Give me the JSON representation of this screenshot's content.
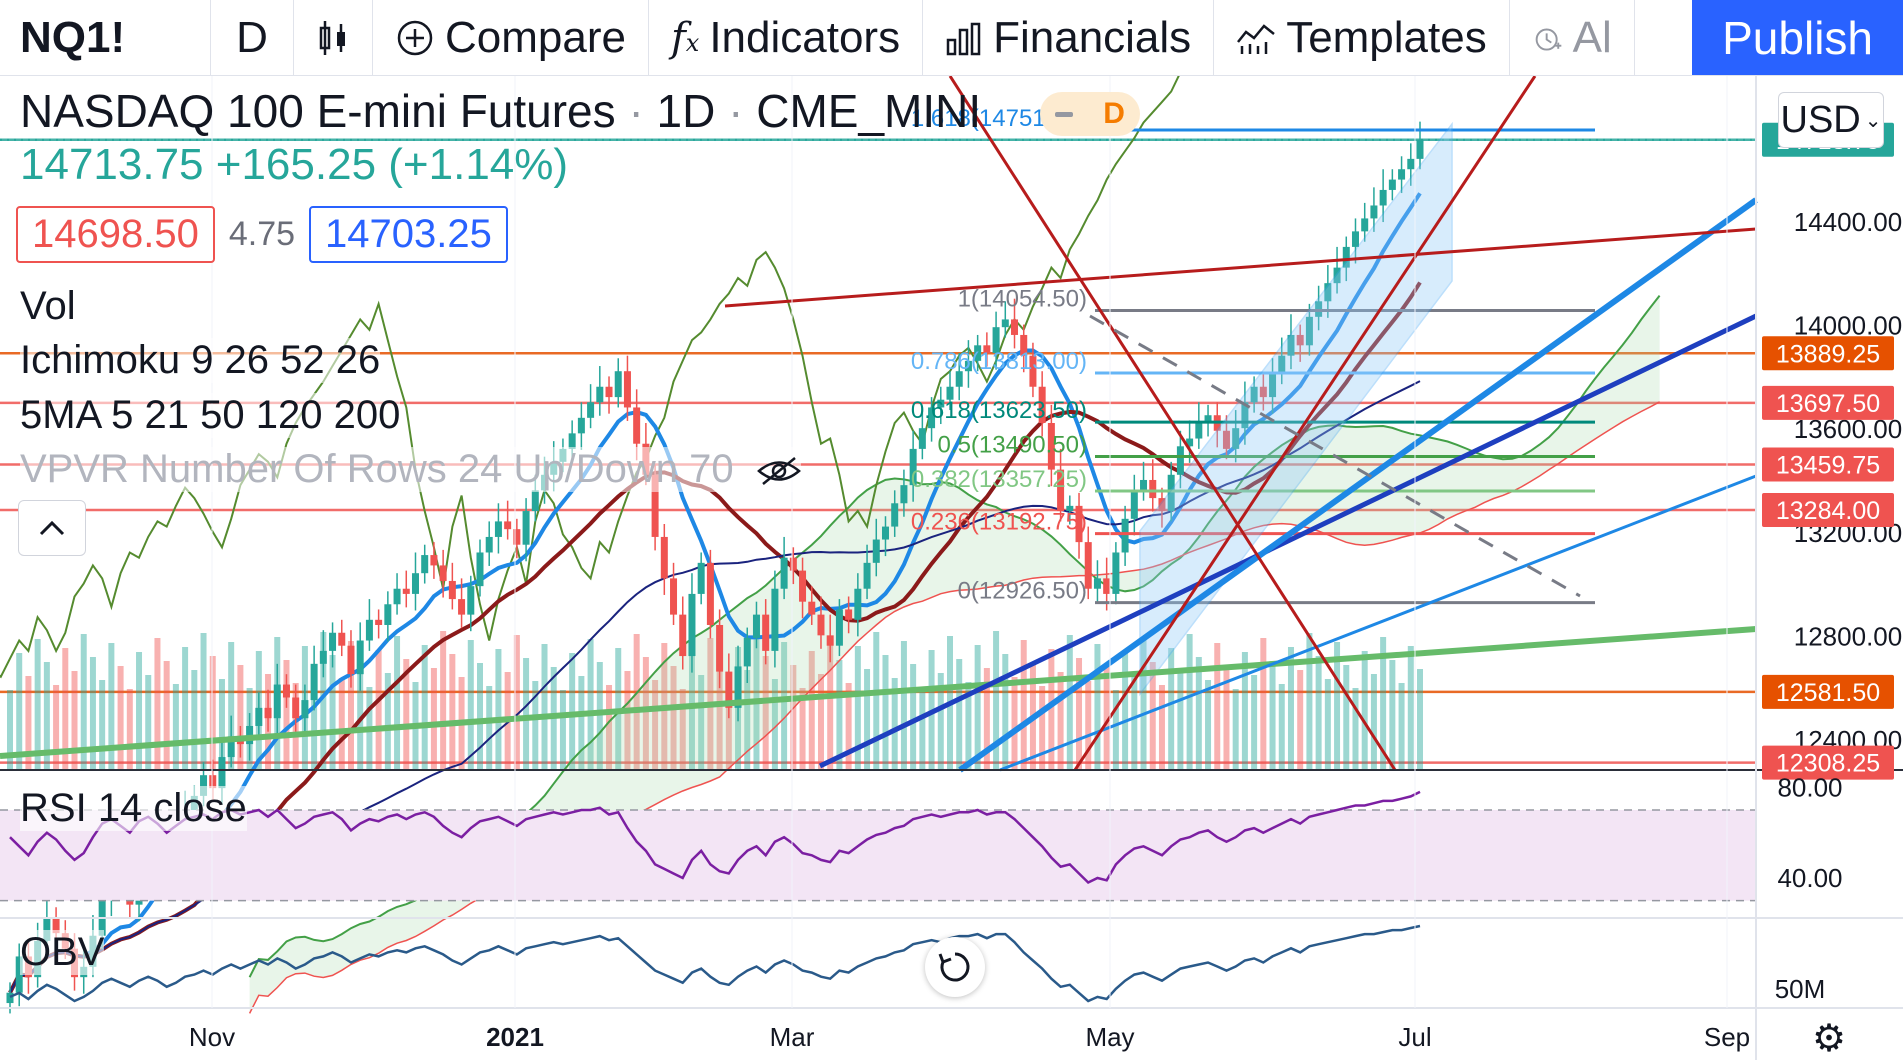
{
  "toolbar": {
    "symbol": "NQ1!",
    "interval": "D",
    "compare_label": "Compare",
    "indicators_label": "Indicators",
    "financials_label": "Financials",
    "templates_label": "Templates",
    "alert_label": "Al",
    "publish_label": "Publish",
    "icons": [
      "bar-style-icon",
      "plus-circle-icon",
      "fx-icon",
      "bar-chart-icon",
      "templates-chart-icon",
      "alarm-icon"
    ]
  },
  "legend": {
    "title": "NASDAQ 100 E-mini Futures",
    "interval": "1D",
    "exchange": "CME_MINI",
    "delay_badge": "D",
    "last_price": "14713.75",
    "change": "+165.25",
    "change_pct": "(+1.14%)",
    "bid": "14698.50",
    "spread": "4.75",
    "ask": "14703.25"
  },
  "indicators": [
    {
      "name": "Vol",
      "params": ""
    },
    {
      "name": "Ichimoku",
      "params": "9 26 52 26"
    },
    {
      "name": "5MA",
      "params": "5 21 50 120 200"
    },
    {
      "name": "VPVR Number Of Rows 24 Up/Down 70",
      "params": ""
    }
  ],
  "currency": "USD",
  "rsi_label": "RSI",
  "rsi_params": "14 close",
  "obv_label": "OBV",
  "colors": {
    "up": "#26a69a",
    "down": "#ef5350",
    "brand_blue": "#2962ff",
    "rsi_line": "#7b1fa2",
    "rsi_band": "#f3e5f5",
    "obv_line": "#2a5a8a",
    "fib_grey": "#787b86"
  },
  "chart_data": [
    {
      "type": "candlestick",
      "title": "NASDAQ 100 E-mini Futures",
      "x_ticks": [
        "Nov",
        "2021",
        "Mar",
        "May",
        "Jul",
        "Sep"
      ],
      "y_ticks": [
        12400,
        12800,
        13200,
        13600,
        14000,
        14400
      ],
      "ylim": [
        12280,
        14960
      ],
      "price_markers": [
        {
          "label": "14713.75",
          "value": 14713.75,
          "color": "#26a69a"
        },
        {
          "label": "13889.25",
          "value": 13889.25,
          "color": "#e65100"
        },
        {
          "label": "13697.50",
          "value": 13697.5,
          "color": "#ef5350"
        },
        {
          "label": "13459.75",
          "value": 13459.75,
          "color": "#ef5350"
        },
        {
          "label": "13284.00",
          "value": 13284.0,
          "color": "#ef5350"
        },
        {
          "label": "12581.50",
          "value": 12581.5,
          "color": "#e65100"
        },
        {
          "label": "12308.25",
          "value": 12308.25,
          "color": "#ef5350"
        }
      ],
      "fib_levels": [
        {
          "label": "1.618(14751.50)",
          "value": 14751.5,
          "color": "#1e88e5"
        },
        {
          "label": "1(14054.50)",
          "value": 14054.5,
          "color": "#787b86"
        },
        {
          "label": "0.786(13813.00)",
          "value": 13813.0,
          "color": "#64b5f6"
        },
        {
          "label": "0.618(13623.50)",
          "value": 13623.5,
          "color": "#00897b"
        },
        {
          "label": "0.5(13490.50)",
          "value": 13490.5,
          "color": "#43a047"
        },
        {
          "label": "0.382(13357.25)",
          "value": 13357.25,
          "color": "#81c784"
        },
        {
          "label": "0.236(13192.75)",
          "value": 13192.75,
          "color": "#ef5350"
        },
        {
          "label": "0(12926.50)",
          "value": 12926.5,
          "color": "#787b86"
        }
      ],
      "closes": [
        11420,
        11560,
        11480,
        11620,
        11710,
        11650,
        11590,
        11480,
        11520,
        11640,
        11780,
        11860,
        11820,
        11760,
        11900,
        12010,
        11950,
        11880,
        11990,
        12120,
        12180,
        12260,
        12210,
        12330,
        12410,
        12380,
        12450,
        12520,
        12480,
        12610,
        12560,
        12480,
        12550,
        12690,
        12740,
        12810,
        12760,
        12650,
        12780,
        12860,
        12840,
        12920,
        12980,
        12960,
        13040,
        13110,
        13070,
        13010,
        12940,
        12880,
        12990,
        13120,
        13180,
        13240,
        13210,
        13150,
        13280,
        13360,
        13420,
        13470,
        13520,
        13580,
        13640,
        13700,
        13760,
        13720,
        13820,
        13680,
        13540,
        13420,
        13180,
        13020,
        12880,
        12720,
        12960,
        13080,
        12840,
        12660,
        12520,
        12680,
        12790,
        12880,
        12740,
        12980,
        13100,
        13050,
        12930,
        12880,
        12800,
        12760,
        12900,
        12860,
        12980,
        13080,
        13170,
        13220,
        13310,
        13380,
        13520,
        13600,
        13680,
        13710,
        13760,
        13820,
        13860,
        13920,
        13890,
        13990,
        14020,
        13960,
        13880,
        13760,
        13620,
        13440,
        13280,
        13300,
        13160,
        12980,
        13020,
        12960,
        13120,
        13250,
        13360,
        13400,
        13330,
        13280,
        13420,
        13530,
        13560,
        13620,
        13650,
        13590,
        13520,
        13600,
        13700,
        13760,
        13720,
        13810,
        13880,
        13960,
        13920,
        14030,
        14090,
        14160,
        14220,
        14300,
        14360,
        14410,
        14460,
        14520,
        14560,
        14600,
        14640,
        14713.75
      ],
      "rsi": [
        58,
        54,
        50,
        56,
        60,
        57,
        52,
        48,
        51,
        58,
        64,
        66,
        63,
        60,
        65,
        67,
        64,
        60,
        63,
        66,
        67,
        68,
        66,
        69,
        70,
        68,
        69,
        70,
        67,
        70,
        66,
        62,
        64,
        67,
        68,
        69,
        66,
        61,
        64,
        66,
        65,
        67,
        68,
        66,
        68,
        69,
        67,
        63,
        60,
        58,
        62,
        65,
        66,
        67,
        65,
        63,
        66,
        67,
        68,
        69,
        68,
        69,
        70,
        70,
        71,
        68,
        69,
        62,
        56,
        52,
        46,
        44,
        42,
        40,
        48,
        52,
        46,
        43,
        42,
        48,
        52,
        54,
        50,
        56,
        58,
        55,
        51,
        50,
        48,
        47,
        52,
        51,
        54,
        57,
        59,
        60,
        62,
        63,
        66,
        67,
        68,
        67,
        68,
        69,
        69,
        70,
        68,
        69,
        69,
        66,
        62,
        58,
        54,
        49,
        45,
        46,
        42,
        38,
        40,
        39,
        46,
        50,
        53,
        54,
        52,
        50,
        54,
        57,
        58,
        60,
        61,
        58,
        56,
        58,
        61,
        62,
        60,
        62,
        64,
        66,
        64,
        67,
        68,
        69,
        70,
        71,
        72,
        72,
        73,
        74,
        74,
        75,
        76,
        78
      ],
      "obv": [
        2.1,
        2.3,
        2.0,
        2.4,
        2.7,
        2.5,
        2.2,
        1.9,
        2.1,
        2.4,
        2.8,
        3.0,
        2.8,
        2.6,
        2.9,
        3.1,
        2.9,
        2.6,
        2.8,
        3.1,
        3.2,
        3.4,
        3.2,
        3.5,
        3.7,
        3.5,
        3.7,
        3.9,
        3.7,
        4.0,
        3.8,
        3.5,
        3.7,
        4.0,
        4.1,
        4.3,
        4.1,
        3.8,
        4.0,
        4.2,
        4.1,
        4.3,
        4.4,
        4.3,
        4.5,
        4.6,
        4.4,
        4.2,
        3.9,
        3.7,
        4.0,
        4.3,
        4.4,
        4.6,
        4.4,
        4.2,
        4.5,
        4.6,
        4.7,
        4.8,
        4.7,
        4.8,
        4.9,
        5.0,
        5.1,
        4.9,
        5.0,
        4.6,
        4.2,
        3.8,
        3.4,
        3.2,
        3.0,
        2.8,
        3.3,
        3.5,
        3.1,
        2.8,
        2.7,
        3.1,
        3.4,
        3.6,
        3.3,
        3.7,
        3.9,
        3.7,
        3.4,
        3.3,
        3.1,
        3.0,
        3.4,
        3.3,
        3.6,
        3.8,
        4.0,
        4.1,
        4.3,
        4.4,
        4.7,
        4.8,
        4.9,
        4.8,
        5.0,
        5.1,
        5.1,
        5.2,
        5.0,
        5.2,
        5.2,
        4.8,
        4.3,
        3.9,
        3.5,
        3.0,
        2.6,
        2.7,
        2.3,
        1.9,
        2.1,
        2.0,
        2.5,
        2.9,
        3.2,
        3.3,
        3.1,
        2.9,
        3.2,
        3.5,
        3.6,
        3.7,
        3.8,
        3.6,
        3.4,
        3.6,
        3.9,
        4.0,
        3.8,
        4.1,
        4.3,
        4.5,
        4.3,
        4.6,
        4.7,
        4.8,
        4.9,
        5.0,
        5.1,
        5.2,
        5.2,
        5.3,
        5.4,
        5.4,
        5.5,
        5.6
      ]
    },
    {
      "type": "line",
      "title": "RSI",
      "y_ticks": [
        40.0,
        80.0
      ],
      "y_tick_labels": [
        "40.00",
        "80.00"
      ],
      "band": [
        30,
        70
      ],
      "ylim": [
        25,
        85
      ]
    },
    {
      "type": "line",
      "title": "OBV",
      "y_ticks": [
        "50M"
      ]
    }
  ]
}
